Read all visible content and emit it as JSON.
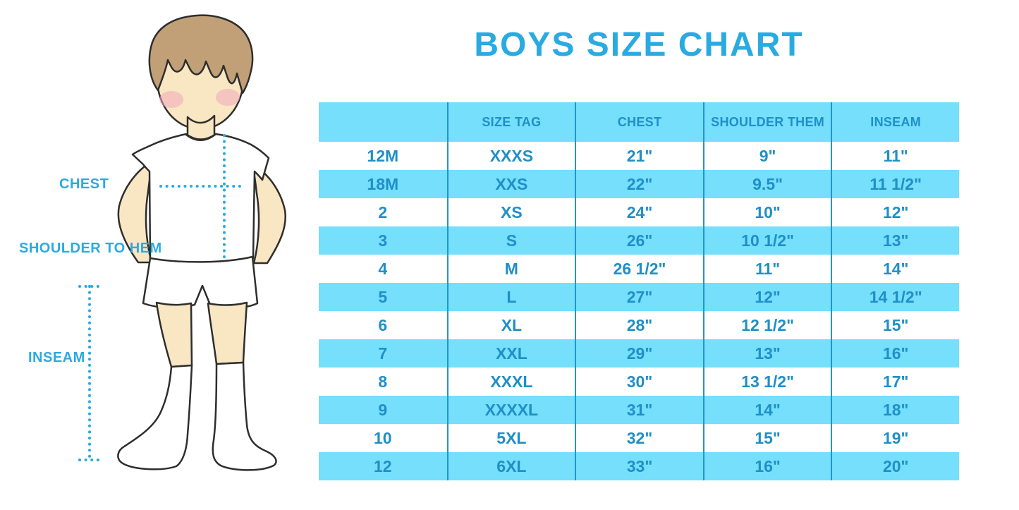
{
  "title": "BOYS SIZE CHART",
  "figure_labels": {
    "chest": "CHEST",
    "shoulder_to_hem": "SHOULDER TO HEM",
    "inseam": "INSEAM"
  },
  "colors": {
    "accent_blue": "#29ABE2",
    "table_text_blue": "#1F8FC7",
    "stripe_cyan": "#75DFFC",
    "divider_blue": "#2196C9"
  },
  "chart_data": {
    "type": "table",
    "title": "BOYS SIZE CHART",
    "columns": [
      "",
      "SIZE TAG",
      "CHEST",
      "SHOULDER THEM",
      "INSEAM"
    ],
    "rows": [
      [
        "12M",
        "XXXS",
        "21\"",
        "9\"",
        "11\""
      ],
      [
        "18M",
        "XXS",
        "22\"",
        "9.5\"",
        "11 1/2\""
      ],
      [
        "2",
        "XS",
        "24\"",
        "10\"",
        "12\""
      ],
      [
        "3",
        "S",
        "26\"",
        "10 1/2\"",
        "13\""
      ],
      [
        "4",
        "M",
        "26 1/2\"",
        "11\"",
        "14\""
      ],
      [
        "5",
        "L",
        "27\"",
        "12\"",
        "14 1/2\""
      ],
      [
        "6",
        "XL",
        "28\"",
        "12 1/2\"",
        "15\""
      ],
      [
        "7",
        "XXL",
        "29\"",
        "13\"",
        "16\""
      ],
      [
        "8",
        "XXXL",
        "30\"",
        "13 1/2\"",
        "17\""
      ],
      [
        "9",
        "XXXXL",
        "31\"",
        "14\"",
        "18\""
      ],
      [
        "10",
        "5XL",
        "32\"",
        "15\"",
        "19\""
      ],
      [
        "12",
        "6XL",
        "33\"",
        "16\"",
        "20\""
      ]
    ],
    "layout": {
      "header_background": "#75DFFC",
      "row_striping": "white / cyan alternating, first data row white",
      "column_dividers": "vertical blue lines between columns only"
    }
  }
}
